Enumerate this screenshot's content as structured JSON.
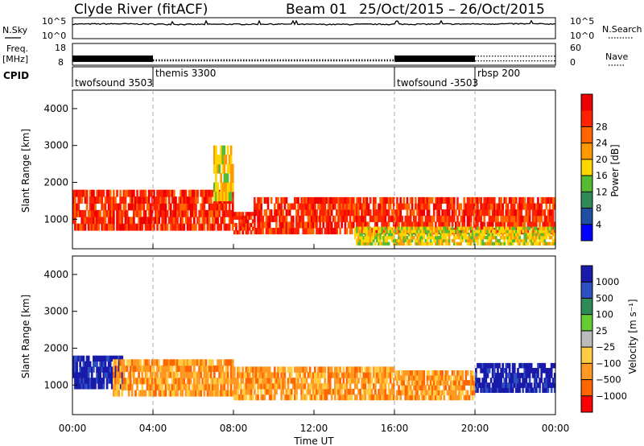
{
  "header": {
    "station": "Clyde River (fitACF)",
    "beam": "Beam 01",
    "dates": "25/Oct/2015 – 26/Oct/2015"
  },
  "top_labels": {
    "nsky": "N.Sky",
    "nsearch": "N.Search",
    "freq_top": "Freq.",
    "freq_bottom": "[MHz]",
    "nave": "Nave",
    "cpid": "CPID",
    "nsky_hi": "10^5",
    "nsky_lo": "10^0",
    "nsearch_hi": "10^5",
    "nsearch_lo": "10^0",
    "freq_hi": "18",
    "freq_lo": "8",
    "nave_hi": "60",
    "nave_lo": "0"
  },
  "cpid_segments": [
    {
      "label": "twofsound 3503",
      "start": 0.0
    },
    {
      "label": "themis 3300",
      "start": 4.0
    },
    {
      "label": "twofsound -3503",
      "start": 16.0
    },
    {
      "label": "rbsp 200",
      "start": 20.0
    }
  ],
  "x_axis": {
    "label": "Time UT",
    "ticks": [
      "00:00",
      "04:00",
      "08:00",
      "12:00",
      "16:00",
      "20:00",
      "00:00"
    ],
    "range_hours": [
      0,
      24
    ]
  },
  "panels": {
    "power": {
      "ylabel": "Slant Range [km]",
      "yticks": [
        "1000",
        "2000",
        "3000",
        "4000"
      ],
      "colorbar_label": "Power [dB]",
      "colorbar_ticks": [
        "4",
        "8",
        "12",
        "16",
        "20",
        "24",
        "28"
      ],
      "colors": [
        "#0000ff",
        "#1f4fa3",
        "#2e8b57",
        "#55bb33",
        "#ffd700",
        "#ff9900",
        "#ff6600",
        "#ff2200",
        "#ee0000"
      ]
    },
    "velocity": {
      "ylabel": "Slant Range [km]",
      "yticks": [
        "1000",
        "2000",
        "3000",
        "4000"
      ],
      "colorbar_label": "Velocity [m s⁻¹]",
      "colorbar_ticks": [
        "1000",
        "500",
        "100",
        "25",
        "−25",
        "−100",
        "−500",
        "−1000"
      ],
      "colors": [
        "#1a1aaa",
        "#2d4fbf",
        "#2e8b57",
        "#66cc33",
        "#bbbbbb",
        "#ffcc44",
        "#ff9922",
        "#ff6600",
        "#ff0000"
      ]
    }
  },
  "chart_data": [
    {
      "type": "line",
      "title": "N.Sky / N.Search",
      "x_range": [
        0,
        24
      ],
      "y_scale": "log",
      "ylim": [
        1,
        100000
      ],
      "x": [
        0,
        2,
        4,
        6,
        8,
        10,
        12,
        14,
        16,
        18,
        20,
        22,
        24
      ],
      "series": [
        {
          "name": "N.Sky",
          "values": [
            3000,
            3500,
            3000,
            2500,
            2800,
            3000,
            2500,
            2600,
            2800,
            3000,
            3200,
            3500,
            3300
          ]
        },
        {
          "name": "N.Search",
          "values": [
            3000,
            3500,
            3000,
            2500,
            2800,
            3000,
            2500,
            2600,
            2800,
            3000,
            3200,
            3500,
            3300
          ]
        }
      ]
    },
    {
      "type": "line",
      "title": "Freq. / Nave",
      "x_range": [
        0,
        24
      ],
      "series": [
        {
          "name": "Freq.",
          "x": [
            0,
            4,
            4,
            16,
            16,
            20,
            20,
            24
          ],
          "values": [
            11,
            11,
            10,
            10,
            11,
            11,
            10,
            10
          ]
        },
        {
          "name": "Nave",
          "x": [
            0,
            4,
            4,
            16,
            16,
            20,
            20,
            24
          ],
          "values": [
            0,
            0,
            15,
            15,
            0,
            0,
            25,
            25
          ]
        }
      ]
    },
    {
      "type": "heatmap",
      "title": "Power [dB]",
      "x_range": [
        0,
        24
      ],
      "ylim": [
        200,
        4500
      ],
      "bands": [
        {
          "t0": 0.0,
          "t1": 8.0,
          "r_lo": 700,
          "r_hi": 1800,
          "level": 7
        },
        {
          "t0": 7.0,
          "t1": 8.0,
          "r_lo": 1500,
          "r_hi": 3000,
          "level": 4
        },
        {
          "t0": 8.0,
          "t1": 9.0,
          "r_lo": 600,
          "r_hi": 1200,
          "level": 7
        },
        {
          "t0": 9.0,
          "t1": 24.0,
          "r_lo": 600,
          "r_hi": 1600,
          "level": 7
        },
        {
          "t0": 14.0,
          "t1": 24.0,
          "r_lo": 300,
          "r_hi": 800,
          "level": 4
        }
      ]
    },
    {
      "type": "heatmap",
      "title": "Velocity [m s⁻¹]",
      "x_range": [
        0,
        24
      ],
      "ylim": [
        200,
        4500
      ],
      "bands": [
        {
          "t0": 0.0,
          "t1": 2.5,
          "r_lo": 900,
          "r_hi": 1800,
          "level": 0
        },
        {
          "t0": 2.0,
          "t1": 8.0,
          "r_lo": 700,
          "r_hi": 1700,
          "level": 6
        },
        {
          "t0": 8.0,
          "t1": 16.0,
          "r_lo": 600,
          "r_hi": 1500,
          "level": 6
        },
        {
          "t0": 16.0,
          "t1": 20.0,
          "r_lo": 600,
          "r_hi": 1400,
          "level": 6
        },
        {
          "t0": 20.0,
          "t1": 24.0,
          "r_lo": 800,
          "r_hi": 1600,
          "level": 0
        }
      ]
    }
  ]
}
